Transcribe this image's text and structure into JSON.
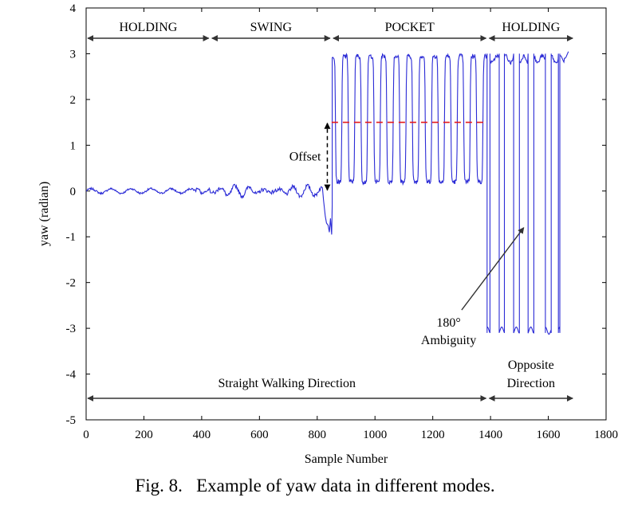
{
  "caption": "Fig. 8.   Example of yaw data in different modes.",
  "chart_data": {
    "type": "line",
    "xlabel": "Sample Number",
    "ylabel": "yaw (radian)",
    "xlim": [
      0,
      1800
    ],
    "ylim": [
      -5,
      4
    ],
    "x_ticks": [
      0,
      200,
      400,
      600,
      800,
      1000,
      1200,
      1400,
      1600,
      1800
    ],
    "y_ticks": [
      4,
      3,
      2,
      1,
      0,
      -1,
      -2,
      -3,
      -4,
      -5
    ],
    "grid": false,
    "line_color": "#2b2bd6",
    "modes": [
      {
        "label": "HOLDING",
        "x_start": 0,
        "x_end": 430
      },
      {
        "label": "SWING",
        "x_start": 430,
        "x_end": 850
      },
      {
        "label": "POCKET",
        "x_start": 850,
        "x_end": 1390
      },
      {
        "label": "HOLDING",
        "x_start": 1390,
        "x_end": 1690
      }
    ],
    "directions": [
      {
        "label": "Straight Walking Direction",
        "x_start": 0,
        "x_end": 1390
      },
      {
        "label_lines": [
          "Opposite",
          "Direction"
        ],
        "x_start": 1390,
        "x_end": 1690
      }
    ],
    "offset": {
      "label": "Offset",
      "x": 835,
      "y_from": 0,
      "y_to": 1.5,
      "line_color": "#e41a1c",
      "line_x_start": 850,
      "line_x_end": 1385,
      "line_y": 1.5
    },
    "ambiguity": {
      "label_lines": [
        "180°",
        "Ambiguity"
      ],
      "arrow_from": [
        1300,
        -2.6
      ],
      "arrow_to": [
        1515,
        -0.8
      ]
    },
    "segments": [
      {
        "mode": "HOLDING",
        "x_start": 0,
        "x_end": 430,
        "center": 0,
        "amplitude": 0.05
      },
      {
        "mode": "SWING",
        "x_start": 430,
        "x_end": 820,
        "center": 0,
        "amplitude": 0.12
      },
      {
        "mode": "transition",
        "x_start": 820,
        "x_end": 852,
        "min": -0.95
      },
      {
        "mode": "POCKET",
        "x_start": 852,
        "x_end": 1385,
        "low": 0.2,
        "high": 2.95,
        "cycles": 12
      },
      {
        "mode": "HOLDING",
        "x_start": 1385,
        "x_end": 1670,
        "top": 3.0,
        "bottom": -3.1,
        "wraps": 10
      }
    ]
  }
}
